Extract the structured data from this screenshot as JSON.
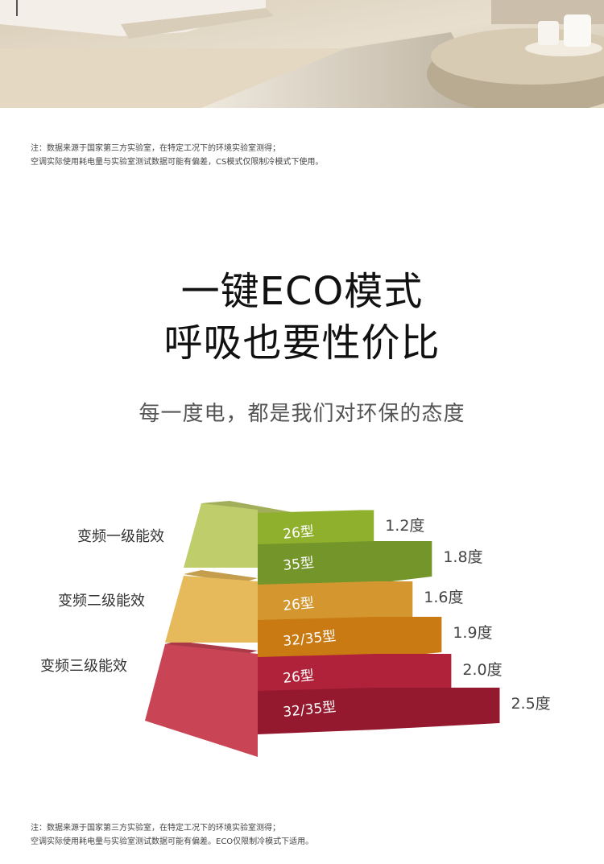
{
  "notes": {
    "top": [
      "注：数据来源于国家第三方实验室，在特定工况下的环境实验室测得；",
      "空调实际使用耗电量与实验室测试数据可能有偏差，CS模式仅限制冷模式下使用。"
    ],
    "bottom": [
      "注：数据来源于国家第三方实验室，在特定工况下的环境实验室测得；",
      "空调实际使用耗电量与实验室测试数据可能有偏差。ECO仅限制冷模式下适用。"
    ]
  },
  "headline": {
    "line1": "一键ECO模式",
    "line2": "呼吸也要性价比"
  },
  "subtitle": "每一度电，都是我们对环保的态度",
  "colors": {
    "tier1_face": "#bfcd6a",
    "tier2_face": "#e6b95a",
    "tier3_face": "#c94455",
    "bars": [
      "#8fb02c",
      "#74952a",
      "#d4972f",
      "#c97a12",
      "#b0223a",
      "#94192e"
    ]
  },
  "chart_data": {
    "type": "bar",
    "unit": "度",
    "tiers": [
      "变频一级能效",
      "变频二级能效",
      "变频三级能效"
    ],
    "bars": [
      {
        "tier": "变频一级能效",
        "model": "26型",
        "value": 1.2,
        "label": "1.2度"
      },
      {
        "tier": "变频一级能效",
        "model": "35型",
        "value": 1.8,
        "label": "1.8度"
      },
      {
        "tier": "变频二级能效",
        "model": "26型",
        "value": 1.6,
        "label": "1.6度"
      },
      {
        "tier": "变频二级能效",
        "model": "32/35型",
        "value": 1.9,
        "label": "1.9度"
      },
      {
        "tier": "变频三级能效",
        "model": "26型",
        "value": 2.0,
        "label": "2.0度"
      },
      {
        "tier": "变频三级能效",
        "model": "32/35型",
        "value": 2.5,
        "label": "2.5度"
      }
    ]
  }
}
